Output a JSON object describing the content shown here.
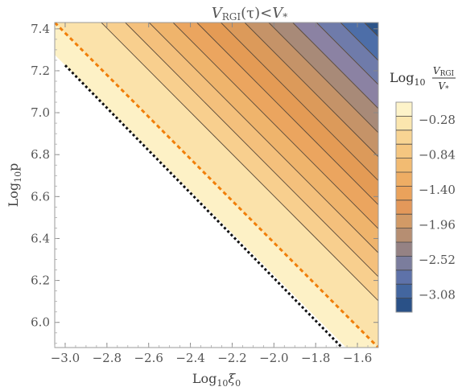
{
  "chart_data": {
    "type": "contour",
    "title": {
      "v1": "V",
      "v1_sub": "RGI",
      "arg": "(τ)<",
      "v2": "V",
      "v2_sub": "*"
    },
    "xlabel": {
      "main": "Log",
      "sub": "10",
      "var": "ξ",
      "var_sub": "0"
    },
    "ylabel": {
      "main": "Log",
      "sub": "10",
      "var": "p"
    },
    "xlim": [
      -3.05,
      -1.5
    ],
    "ylim": [
      5.88,
      7.43
    ],
    "x_ticks": [
      -3.0,
      -2.8,
      -2.6,
      -2.4,
      -2.2,
      -2.0,
      -1.8,
      -1.6
    ],
    "x_tick_labels": [
      "−3.0",
      "−2.8",
      "−2.6",
      "−2.4",
      "−2.2",
      "−2.0",
      "−1.8",
      "−1.6"
    ],
    "y_ticks": [
      6.0,
      6.2,
      6.4,
      6.6,
      6.8,
      7.0,
      7.2,
      7.4
    ],
    "y_tick_labels": [
      "6.0",
      "6.2",
      "6.4",
      "6.6",
      "6.8",
      "7.0",
      "7.2",
      "7.4"
    ],
    "boundaries": {
      "black_dashed": {
        "x": [
          -3.0,
          -1.674
        ],
        "y": [
          7.226,
          5.88
        ]
      },
      "orange_dashed": {
        "x": [
          -3.05,
          -1.5
        ],
        "y": [
          7.43,
          5.88
        ]
      }
    },
    "contour_lines_x_at_top": [
      -2.827,
      -2.712,
      -2.598,
      -2.483,
      -2.369,
      -2.254,
      -2.14,
      -2.025,
      -1.91,
      -1.796,
      -1.681,
      -1.567
    ],
    "contour_fill_colors": [
      "#fdf1c6",
      "#fbe2aa",
      "#f8cf8e",
      "#f4c07c",
      "#efb46c",
      "#eba55f",
      "#e49b55",
      "#dc9a5a",
      "#c59368",
      "#a88a78",
      "#8b82a3",
      "#6f7baa",
      "#4d6ea8",
      "#2d5488"
    ],
    "colorbar": {
      "title_main": "Log",
      "title_sub": "10",
      "num_main": "V",
      "num_sub": "RGI",
      "den_main": "V",
      "den_sub": "*",
      "tick_labels": [
        "−0.28",
        "−0.84",
        "−1.40",
        "−1.96",
        "−2.52",
        "−3.08"
      ],
      "tick_values": [
        -0.28,
        -0.84,
        -1.4,
        -1.96,
        -2.52,
        -3.08
      ],
      "colors": [
        "#fdf3c9",
        "#fbe6ae",
        "#f8d493",
        "#f5c680",
        "#f2bb72",
        "#eead64",
        "#eaa25b",
        "#e3985a",
        "#d29a66",
        "#b68e72",
        "#958284",
        "#7b7d9d",
        "#5e72a9",
        "#43669f",
        "#2a5187"
      ]
    }
  }
}
